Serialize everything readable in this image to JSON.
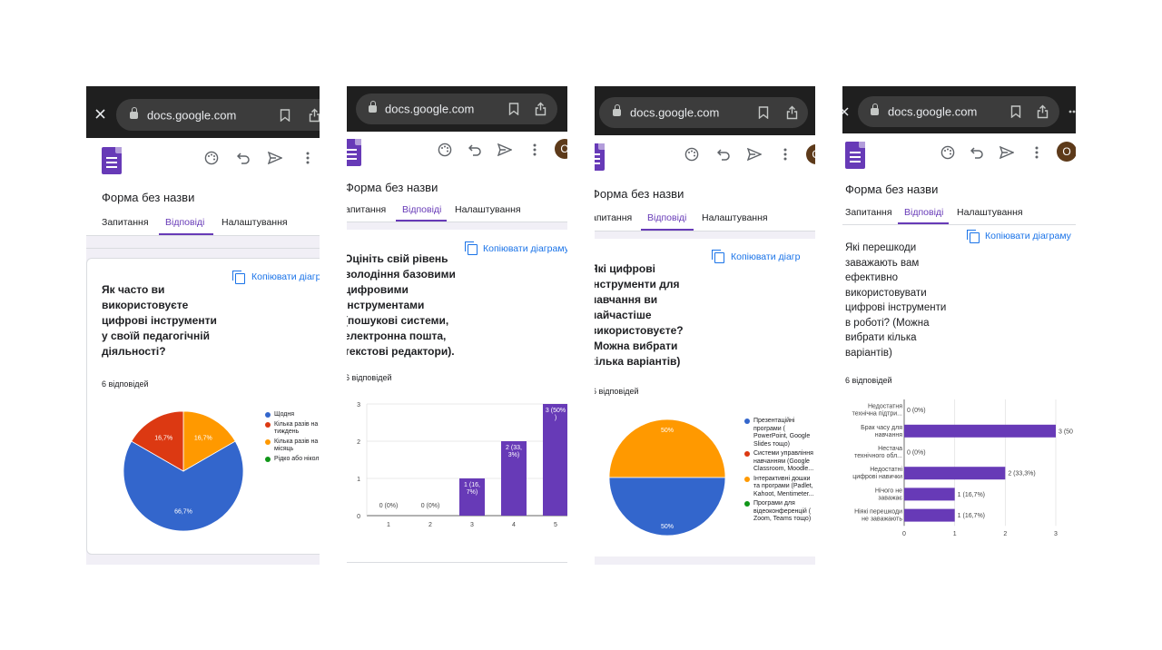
{
  "browser": {
    "url": "docs.google.com"
  },
  "app": {
    "title": "Форма без назви",
    "tabs": [
      "Запитання",
      "Відповіді",
      "Налаштування"
    ],
    "active_tab": "Відповіді",
    "copy_label": "Копіювати діаграму",
    "avatar_letter": "O",
    "accent": "#673ab7",
    "link_color": "#1a73e8"
  },
  "panels": [
    {
      "url": "docs.google.com",
      "title": "Форма без назви",
      "tabs": [
        "Запитання",
        "Відповіді",
        "Налаштування"
      ],
      "copy_label": "Копіювати діагр",
      "question_lines": [
        "Як часто ви",
        "використовуєте",
        "цифрові інструменти",
        "у своїй педагогічній",
        "діяльності?"
      ],
      "count": "6 відповідей",
      "legend": [
        "Щодня",
        "Кілька разів на тиждень",
        "Кілька разів на місяць",
        "Рідко або ніко"
      ],
      "legend_lines": [
        [
          "Щодня"
        ],
        [
          "Кілька разів на",
          "тиждень"
        ],
        [
          "Кілька разів на",
          "місяць"
        ],
        [
          "Рідко або нікол"
        ]
      ]
    },
    {
      "url": "docs.google.com",
      "title": "Форма без назви",
      "tabs": [
        "апитання",
        "Відповіді",
        "Налаштування"
      ],
      "copy_label": "Копіювати діаграму",
      "avatar_letter": "О",
      "question_lines": [
        "Оцініть свій рівень",
        "володіння базовими",
        "цифровими",
        "інструментами",
        "(пошукові системи,",
        "електронна пошта,",
        "текстові редактори)."
      ],
      "count": "6 відповідей"
    },
    {
      "url": "docs.google.com",
      "title": "Форма без назви",
      "tabs": [
        "апитання",
        "Відповіді",
        "Налаштування"
      ],
      "copy_label": "Копіювати діагр",
      "avatar_letter": "О",
      "question_lines": [
        "Які цифрові",
        "інструменти для",
        "навчання ви",
        "найчастіше",
        "використовуєте?",
        "(Можна вибрати",
        "кілька варіантів)"
      ],
      "count": "6 відповідей",
      "legend_lines": [
        [
          "Презентаційні",
          "програми (",
          "PowerPoint, Google",
          "Slides тощо)"
        ],
        [
          "Системи управління",
          "навчанням (Google",
          "Classroom, Moodle..."
        ],
        [
          "Інтерактивні дошки",
          "та програми (Padlet,",
          "Kahoot, Mentimeter..."
        ],
        [
          "Програми для",
          "відеоконференцій (",
          "Zoom, Teams тощо)"
        ]
      ]
    },
    {
      "url": "docs.google.com",
      "title": "Форма без назви",
      "tabs": [
        "Запитання",
        "Відповіді",
        "Налаштування"
      ],
      "copy_label": "Копіювати діаграму",
      "avatar_letter": "O",
      "question_lines": [
        "Які перешкоди",
        "заважають вам",
        "ефективно",
        "використовувати",
        "цифрові інструменти",
        "в роботі? (Можна",
        "вибрати кілька",
        "варіантів)"
      ],
      "count": "6 відповідей"
    }
  ],
  "chart_data": [
    {
      "type": "pie",
      "categories": [
        "Щодня",
        "Кілька разів на тиждень",
        "Кілька разів на місяць",
        "Рідко або ніко"
      ],
      "values": [
        66.7,
        16.7,
        16.7,
        0
      ],
      "labels": [
        "66,7%",
        "16,7%",
        "16,7%",
        ""
      ],
      "colors": [
        "#3366cc",
        "#dc3912",
        "#ff9900",
        "#109618"
      ],
      "legend": "right"
    },
    {
      "type": "bar",
      "categories": [
        "1",
        "2",
        "3",
        "4",
        "5"
      ],
      "values": [
        0,
        0,
        1,
        2,
        3
      ],
      "data_labels": [
        "0 (0%)",
        "0 (0%)",
        "1 (16,7%)",
        "2 (33,3%)",
        "3 (50%)"
      ],
      "ylim": [
        0,
        3
      ],
      "yticks": [
        "0",
        "1",
        "2",
        "3"
      ],
      "color": "#673ab7",
      "grid": true
    },
    {
      "type": "pie",
      "categories": [
        "Презентаційні програми ( PowerPoint, Google Slides тощо)",
        "Системи управління навчанням (Google Classroom, Moodle...",
        "Інтерактивні дошки та програми (Padlet, Kahoot, Mentimeter...",
        "Програми для відеоконференцій ( Zoom, Teams тощо)"
      ],
      "values": [
        50,
        0,
        50,
        0
      ],
      "labels": [
        "50%",
        "",
        "50%",
        ""
      ],
      "colors": [
        "#3366cc",
        "#dc3912",
        "#ff9900",
        "#109618"
      ],
      "legend": "right"
    },
    {
      "type": "bar",
      "orientation": "horizontal",
      "categories": [
        [
          "Недостатня",
          "технічна підтри..."
        ],
        [
          "Брак часу для",
          "навчання"
        ],
        [
          "Нестача",
          "технічного обл..."
        ],
        [
          "Недостатні",
          "цифрові навички"
        ],
        [
          "Нічого не",
          "заважає"
        ],
        [
          "Ніякі перешкоди",
          "не заважають"
        ]
      ],
      "values": [
        0,
        3,
        0,
        2,
        1,
        1
      ],
      "data_labels": [
        "0 (0%)",
        "3 (50",
        "0 (0%)",
        "2 (33,3%)",
        "1 (16,7%)",
        "1 (16,7%)"
      ],
      "xlim": [
        0,
        3
      ],
      "xticks": [
        "0",
        "1",
        "2",
        "3"
      ],
      "color": "#673ab7",
      "grid": true
    }
  ]
}
